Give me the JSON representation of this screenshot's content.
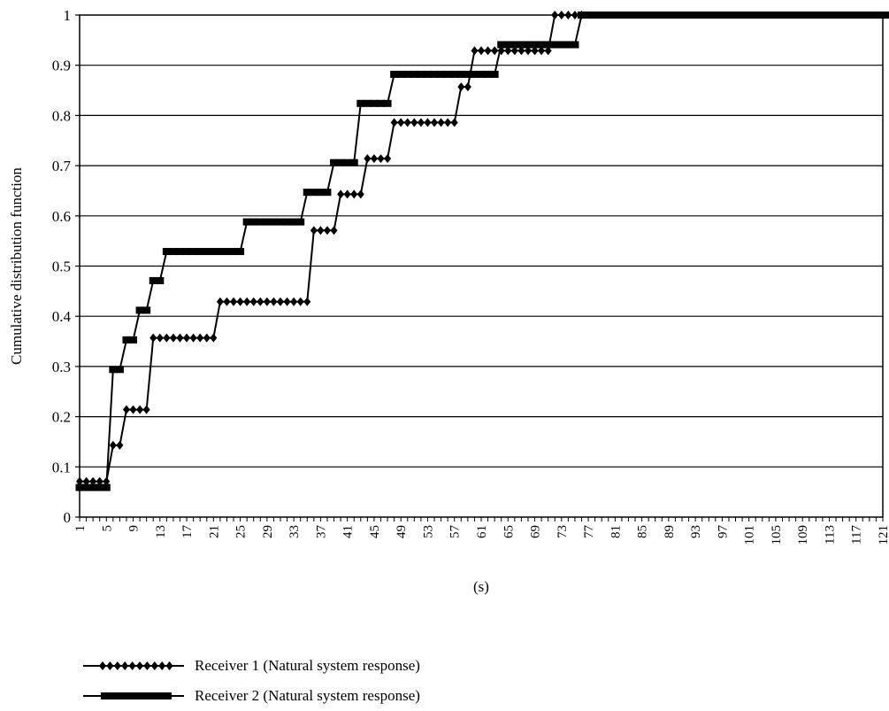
{
  "chart_data": {
    "type": "line",
    "title": "",
    "xlabel": "(s)",
    "ylabel": "Cumulative distribution function",
    "xlim": [
      1,
      121
    ],
    "ylim": [
      0,
      1
    ],
    "x_ticks": [
      "1",
      "5",
      "9",
      "13",
      "17",
      "21",
      "25",
      "29",
      "33",
      "37",
      "41",
      "45",
      "49",
      "53",
      "57",
      "61",
      "65",
      "69",
      "73",
      "77",
      "81",
      "85",
      "89",
      "93",
      "97",
      "101",
      "105",
      "109",
      "113",
      "117",
      "121"
    ],
    "y_ticks": [
      "0",
      "0.1",
      "0.2",
      "0.3",
      "0.4",
      "0.5",
      "0.6",
      "0.7",
      "0.8",
      "0.9",
      "1"
    ],
    "grid": "horizontal",
    "legend_position": "bottom",
    "series": [
      {
        "name": "Receiver 1 (Natural system response)",
        "marker": "diamond",
        "values": [
          0.071,
          0.071,
          0.071,
          0.071,
          0.071,
          0.143,
          0.143,
          0.214,
          0.214,
          0.214,
          0.214,
          0.357,
          0.357,
          0.357,
          0.357,
          0.357,
          0.357,
          0.357,
          0.357,
          0.357,
          0.357,
          0.429,
          0.429,
          0.429,
          0.429,
          0.429,
          0.429,
          0.429,
          0.429,
          0.429,
          0.429,
          0.429,
          0.429,
          0.429,
          0.429,
          0.571,
          0.571,
          0.571,
          0.571,
          0.643,
          0.643,
          0.643,
          0.643,
          0.714,
          0.714,
          0.714,
          0.714,
          0.786,
          0.786,
          0.786,
          0.786,
          0.786,
          0.786,
          0.786,
          0.786,
          0.786,
          0.786,
          0.857,
          0.857,
          0.929,
          0.929,
          0.929,
          0.929,
          0.929,
          0.929,
          0.929,
          0.929,
          0.929,
          0.929,
          0.929,
          0.929,
          1,
          1,
          1,
          1,
          1,
          1,
          1,
          1,
          1,
          1,
          1,
          1,
          1,
          1,
          1,
          1,
          1,
          1,
          1,
          1,
          1,
          1,
          1,
          1,
          1,
          1,
          1,
          1,
          1,
          1,
          1,
          1,
          1,
          1,
          1,
          1,
          1,
          1,
          1,
          1,
          1,
          1,
          1,
          1,
          1,
          1,
          1,
          1,
          1,
          1,
          1,
          1,
          1
        ]
      },
      {
        "name": "Receiver 2 (Natural system response)",
        "marker": "bar",
        "values": [
          0.059,
          0.059,
          0.059,
          0.059,
          0.059,
          0.294,
          0.294,
          0.353,
          0.353,
          0.412,
          0.412,
          0.471,
          0.471,
          0.529,
          0.529,
          0.529,
          0.529,
          0.529,
          0.529,
          0.529,
          0.529,
          0.529,
          0.529,
          0.529,
          0.529,
          0.588,
          0.588,
          0.588,
          0.588,
          0.588,
          0.588,
          0.588,
          0.588,
          0.588,
          0.647,
          0.647,
          0.647,
          0.647,
          0.706,
          0.706,
          0.706,
          0.706,
          0.824,
          0.824,
          0.824,
          0.824,
          0.824,
          0.882,
          0.882,
          0.882,
          0.882,
          0.882,
          0.882,
          0.882,
          0.882,
          0.882,
          0.882,
          0.882,
          0.882,
          0.882,
          0.882,
          0.882,
          0.882,
          0.941,
          0.941,
          0.941,
          0.941,
          0.941,
          0.941,
          0.941,
          0.941,
          0.941,
          0.941,
          0.941,
          0.941,
          1,
          1,
          1,
          1,
          1,
          1,
          1,
          1,
          1,
          1,
          1,
          1,
          1,
          1,
          1,
          1,
          1,
          1,
          1,
          1,
          1,
          1,
          1,
          1,
          1,
          1,
          1,
          1,
          1,
          1,
          1,
          1,
          1,
          1,
          1,
          1,
          1,
          1,
          1,
          1,
          1,
          1,
          1,
          1,
          1,
          1,
          1,
          1,
          1,
          1,
          1
        ]
      }
    ]
  }
}
